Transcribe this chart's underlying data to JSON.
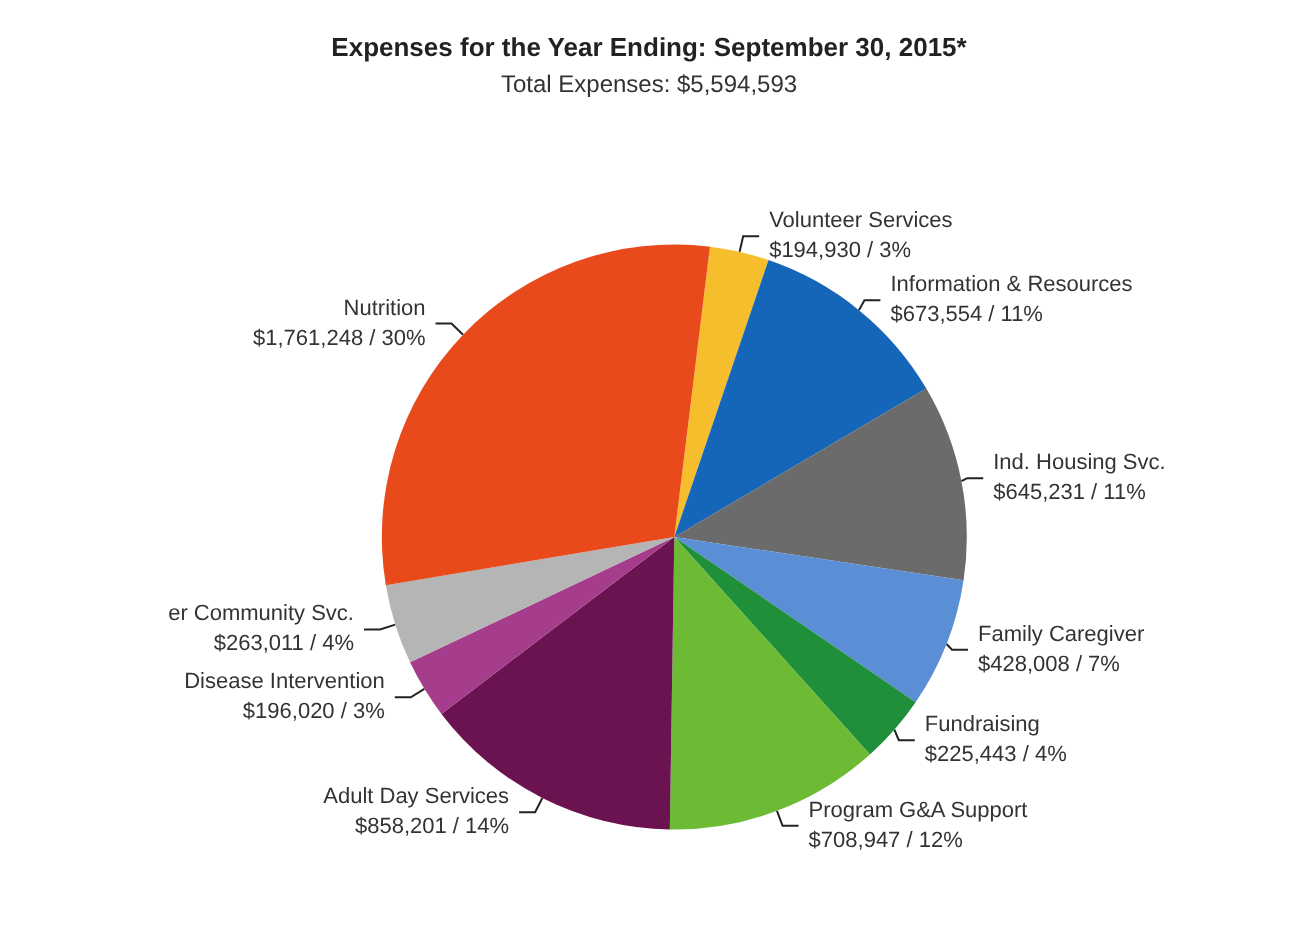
{
  "chart_data": {
    "type": "pie",
    "title": "Expenses for the Year Ending: September 30, 2015*",
    "subtitle": "Total Expenses: $5,594,593",
    "categories": [
      "Volunteer Services",
      "Information & Resources",
      "Ind. Housing Svc.",
      "Family Caregiver",
      "Fundraising",
      "Program G&A Support",
      "Adult Day Services",
      "Disease Intervention",
      "er Community Svc.",
      "Nutrition"
    ],
    "values": [
      194930,
      673554,
      645231,
      428008,
      225443,
      708947,
      858201,
      196020,
      263011,
      1761248
    ],
    "value_labels": [
      "$194,930 / 3%",
      "$673,554 / 11%",
      "$645,231 / 11%",
      "$428,008 / 7%",
      "$225,443 / 4%",
      "$708,947 / 12%",
      "$858,201 / 14%",
      "$196,020 / 3%",
      "$263,011 / 4%",
      "$1,761,248 / 30%"
    ],
    "colors": [
      "#f6be2c",
      "#1565b8",
      "#6b6b6b",
      "#5a8fd6",
      "#1f8f3a",
      "#6dbb35",
      "#6b1250",
      "#a63d8c",
      "#b5b5b5",
      "#e84a1c"
    ],
    "legend": false
  }
}
